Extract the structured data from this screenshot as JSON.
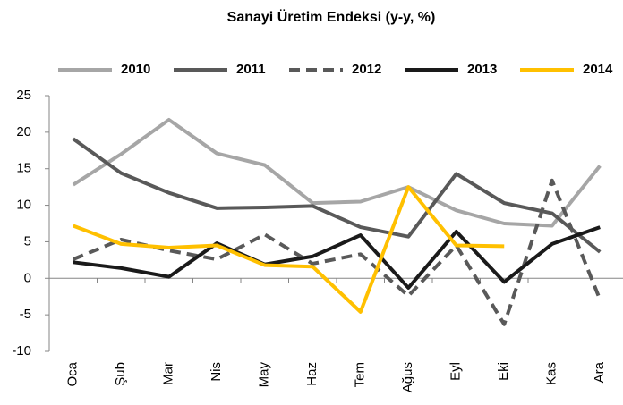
{
  "chart_data": {
    "type": "line",
    "title": "Sanayi Üretim Endeksi (y-y, %)",
    "categories": [
      "Oca",
      "Şub",
      "Mar",
      "Nis",
      "May",
      "Haz",
      "Tem",
      "Ağus",
      "Eyl",
      "Eki",
      "Kas",
      "Ara"
    ],
    "series": [
      {
        "name": "2010",
        "color": "#a6a6a6",
        "values": [
          12.8,
          17.0,
          21.7,
          17.1,
          15.5,
          10.3,
          10.5,
          12.5,
          9.3,
          7.5,
          7.2,
          15.4
        ]
      },
      {
        "name": "2011",
        "color": "#595959",
        "values": [
          19.1,
          14.4,
          11.7,
          9.6,
          9.7,
          9.9,
          7.0,
          5.7,
          14.3,
          10.3,
          8.9,
          3.6
        ]
      },
      {
        "name": "2012",
        "color": "#595959",
        "dashed": true,
        "values": [
          2.6,
          5.3,
          3.8,
          2.6,
          6.0,
          2.0,
          3.3,
          -2.4,
          4.5,
          -6.3,
          13.4,
          -2.9
        ]
      },
      {
        "name": "2013",
        "color": "#1a1a1a",
        "values": [
          2.2,
          1.4,
          0.2,
          4.8,
          1.9,
          3.0,
          5.9,
          -1.3,
          6.4,
          -0.5,
          4.7,
          7.0
        ]
      },
      {
        "name": "2014",
        "color": "#ffc000",
        "values": [
          7.2,
          4.7,
          4.2,
          4.5,
          1.8,
          1.6,
          -4.6,
          12.5,
          4.5,
          4.4,
          null,
          null
        ]
      }
    ],
    "ylim": [
      -10,
      25
    ],
    "yticks": [
      -10,
      -5,
      0,
      5,
      10,
      15,
      20,
      25
    ],
    "grid": false,
    "legend": "top"
  }
}
